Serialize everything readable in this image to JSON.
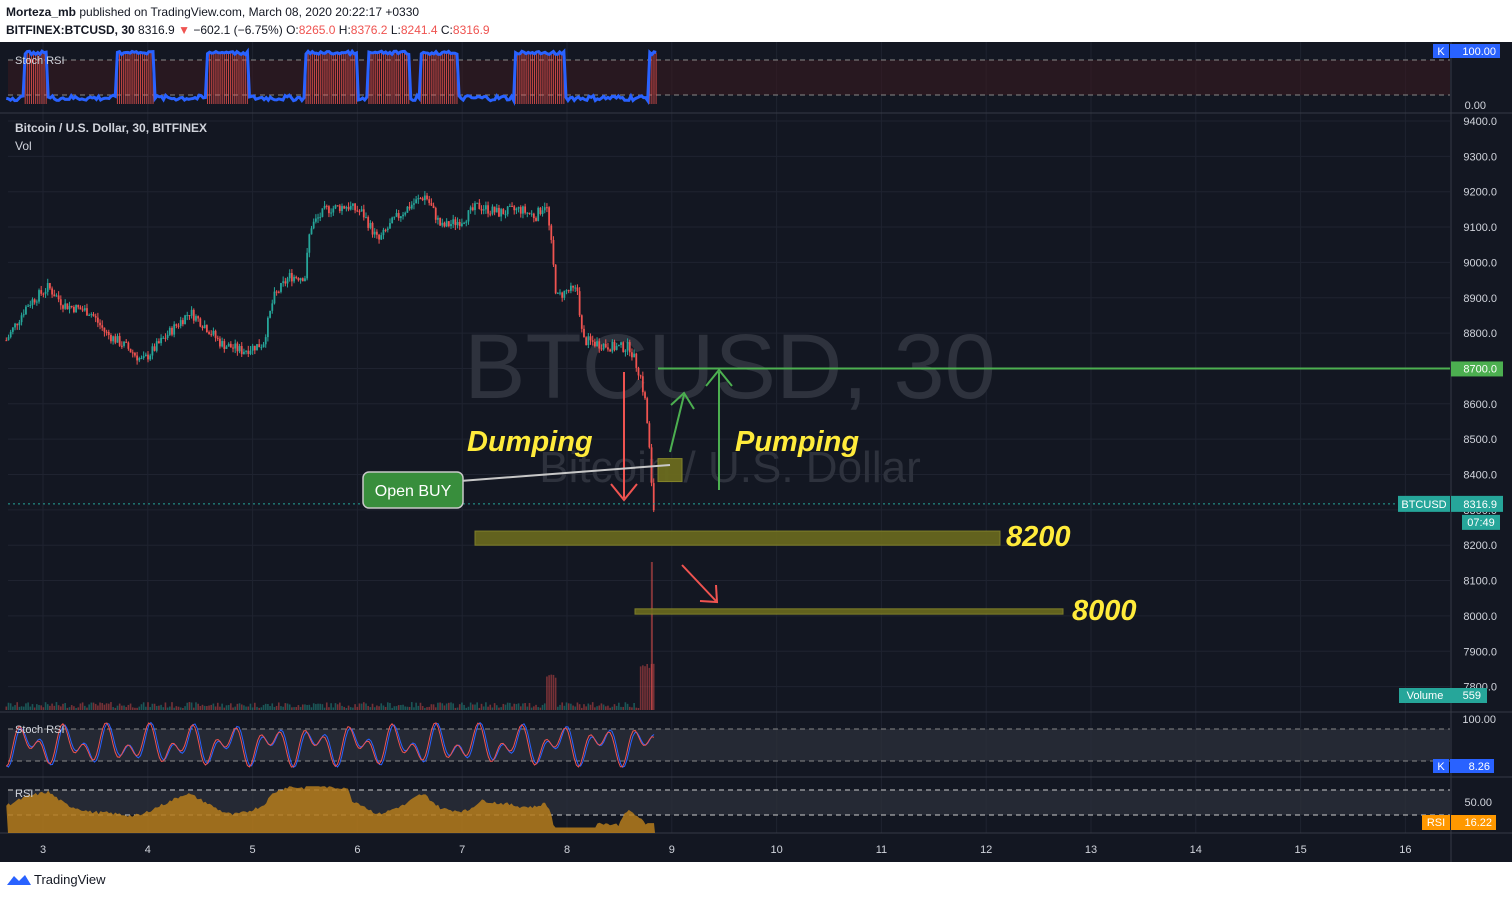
{
  "header": {
    "author": "Morteza_mb",
    "published_text": "published on TradingView.com, March 08, 2020 20:22:17 +0330",
    "symbol_line": "BITFINEX:BTCUSD, 30",
    "last_price": "8316.9",
    "change_arrow": "▼",
    "change": "−602.1 (−6.75%)",
    "o_label": "O:",
    "o_value": "8265.0",
    "h_label": "H:",
    "h_value": "8376.2",
    "l_label": "L:",
    "l_value": "8241.4",
    "c_label": "C:",
    "c_value": "8316.9"
  },
  "main_pane": {
    "title": "Bitcoin / U.S. Dollar, 30, BITFINEX",
    "sub": "Vol",
    "watermark_symbol": "BTCUSD, 30",
    "watermark_name": "Bitcoin / U.S. Dollar",
    "price_ticks": [
      "9400.0",
      "9300.0",
      "9200.0",
      "9100.0",
      "9000.0",
      "8900.0",
      "8800.0",
      "8700.0",
      "8600.0",
      "8500.0",
      "8400.0",
      "8300.0",
      "8200.0",
      "8100.0",
      "8000.0",
      "7900.0",
      "7800.0"
    ],
    "last_price_badge_label": "BTCUSD",
    "last_price_badge_value": "8316.9",
    "countdown": "07:49",
    "line_8700_label": "8700.0",
    "volume_badge_label": "Volume",
    "volume_badge_value": "559"
  },
  "annotations": {
    "dumping": "Dumping",
    "pumping": "Pumping",
    "open_buy": "Open BUY",
    "level_8200": "8200",
    "level_8000": "8000"
  },
  "top_stoch": {
    "title": "Stoch RSI",
    "k_label": "K",
    "top_value": "100.00",
    "bottom_value": "0.00"
  },
  "lower_stoch": {
    "title": "Stoch RSI",
    "top_value": "100.00",
    "k_label": "K",
    "k_value": "8.26"
  },
  "rsi_pane": {
    "title": "RSI",
    "mid_value": "50.00",
    "badge_label": "RSI",
    "badge_value": "16.22"
  },
  "x_axis": {
    "ticks": [
      "3",
      "4",
      "5",
      "6",
      "7",
      "8",
      "9",
      "10",
      "11",
      "12",
      "13",
      "14",
      "15",
      "16"
    ]
  },
  "footer": {
    "brand": "TradingView"
  },
  "colors": {
    "background": "#131722",
    "up_candle": "#26a69a",
    "down_candle": "#ef5350",
    "stoch_k": "#2962ff",
    "stoch_d": "#ef5350",
    "rsi_fill": "#b67d1c",
    "green_line": "#4caf50",
    "level_fill": "#6b6b1e",
    "annotation_yellow": "#ffeb3b"
  },
  "chart_data": {
    "type": "candlestick",
    "symbol": "BITFINEX:BTCUSD",
    "timeframe": "30",
    "ylim": [
      7780,
      9430
    ],
    "x_tick_labels": [
      "3",
      "4",
      "5",
      "6",
      "7",
      "8",
      "9",
      "10",
      "11",
      "12",
      "13",
      "14",
      "15",
      "16"
    ],
    "close_path": [
      {
        "day": 2.65,
        "price": 8780
      },
      {
        "day": 2.85,
        "price": 8880
      },
      {
        "day": 3.05,
        "price": 8930
      },
      {
        "day": 3.2,
        "price": 8880
      },
      {
        "day": 3.45,
        "price": 8860
      },
      {
        "day": 3.6,
        "price": 8800
      },
      {
        "day": 3.8,
        "price": 8760
      },
      {
        "day": 3.95,
        "price": 8720
      },
      {
        "day": 4.2,
        "price": 8800
      },
      {
        "day": 4.4,
        "price": 8860
      },
      {
        "day": 4.55,
        "price": 8820
      },
      {
        "day": 4.7,
        "price": 8770
      },
      {
        "day": 4.9,
        "price": 8750
      },
      {
        "day": 5.1,
        "price": 8770
      },
      {
        "day": 5.2,
        "price": 8900
      },
      {
        "day": 5.35,
        "price": 8960
      },
      {
        "day": 5.5,
        "price": 8960
      },
      {
        "day": 5.55,
        "price": 9100
      },
      {
        "day": 5.7,
        "price": 9150
      },
      {
        "day": 5.9,
        "price": 9160
      },
      {
        "day": 6.05,
        "price": 9140
      },
      {
        "day": 6.2,
        "price": 9060
      },
      {
        "day": 6.35,
        "price": 9120
      },
      {
        "day": 6.5,
        "price": 9160
      },
      {
        "day": 6.65,
        "price": 9190
      },
      {
        "day": 6.8,
        "price": 9100
      },
      {
        "day": 7.0,
        "price": 9120
      },
      {
        "day": 7.15,
        "price": 9160
      },
      {
        "day": 7.35,
        "price": 9140
      },
      {
        "day": 7.55,
        "price": 9150
      },
      {
        "day": 7.7,
        "price": 9130
      },
      {
        "day": 7.8,
        "price": 9170
      },
      {
        "day": 7.85,
        "price": 9050
      },
      {
        "day": 7.9,
        "price": 8900
      },
      {
        "day": 8.0,
        "price": 8920
      },
      {
        "day": 8.1,
        "price": 8920
      },
      {
        "day": 8.15,
        "price": 8780
      },
      {
        "day": 8.3,
        "price": 8770
      },
      {
        "day": 8.45,
        "price": 8760
      },
      {
        "day": 8.6,
        "price": 8760
      },
      {
        "day": 8.7,
        "price": 8680
      },
      {
        "day": 8.75,
        "price": 8600
      },
      {
        "day": 8.8,
        "price": 8420
      },
      {
        "day": 8.82,
        "price": 8260
      },
      {
        "day": 8.83,
        "price": 8316.9
      }
    ],
    "last_close": 8316.9,
    "horizontal_line": 8700,
    "support_zones": [
      {
        "label": "8200",
        "from": 8200,
        "to": 8240
      },
      {
        "label": "8000",
        "from": 8005,
        "to": 8020
      }
    ],
    "open_buy_zone": {
      "from": 8380,
      "to": 8445
    },
    "stoch_rsi_top_k_last": 100,
    "stoch_rsi_lower_k_last": 8.26,
    "rsi_last": 16.22
  }
}
